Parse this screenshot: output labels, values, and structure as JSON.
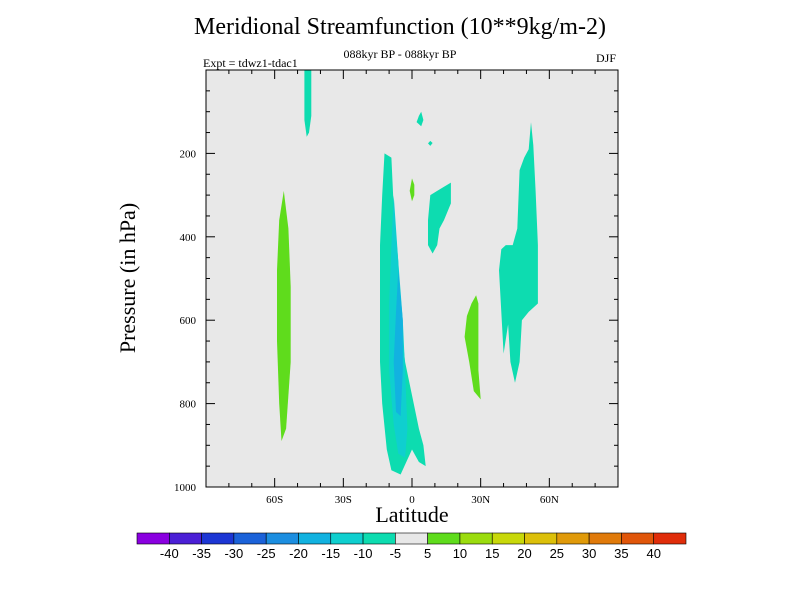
{
  "chart_data": {
    "type": "heatmap",
    "title": "Meridional Streamfunction (10**9kg/m-2)",
    "subtitle": "088kyr BP - 088kyr BP",
    "experiment": "Expt = tdwz1-tdac1",
    "season": "DJF",
    "xlabel": "Latitude",
    "ylabel": "Pressure (in hPa)",
    "xlim": [
      -90,
      90
    ],
    "ylim": [
      1000,
      0
    ],
    "x_ticks": [
      {
        "value": -60,
        "label": "60S"
      },
      {
        "value": -30,
        "label": "30S"
      },
      {
        "value": 0,
        "label": "0"
      },
      {
        "value": 30,
        "label": "30N"
      },
      {
        "value": 60,
        "label": "60N"
      }
    ],
    "y_ticks": [
      {
        "value": 200,
        "label": "200"
      },
      {
        "value": 400,
        "label": "400"
      },
      {
        "value": 600,
        "label": "600"
      },
      {
        "value": 800,
        "label": "800"
      },
      {
        "value": 1000,
        "label": "1000"
      }
    ],
    "background_color": "#e8e8e8",
    "colorbar": {
      "levels": [
        "-40",
        "-35",
        "-30",
        "-25",
        "-20",
        "-15",
        "-10",
        "-5",
        "5",
        "10",
        "15",
        "20",
        "25",
        "30",
        "35",
        "40"
      ],
      "colors": [
        "#8a00e0",
        "#4b1fd6",
        "#1c36d4",
        "#1b62d9",
        "#1c8ee0",
        "#12b2e0",
        "#0fcfcf",
        "#0ddcb0",
        "#e8e8e8",
        "#5fdc1c",
        "#9bdc0e",
        "#c8d80a",
        "#dcc00a",
        "#e09a0a",
        "#e07a0a",
        "#e0560a",
        "#e02d0a"
      ]
    },
    "regions": [
      {
        "name": "60S-positive",
        "color": "#5fdc1c",
        "points": [
          [
            -56,
            290
          ],
          [
            -54,
            380
          ],
          [
            -53,
            520
          ],
          [
            -53,
            700
          ],
          [
            -55,
            860
          ],
          [
            -57,
            890
          ],
          [
            -58,
            800
          ],
          [
            -59,
            650
          ],
          [
            -59,
            480
          ],
          [
            -58,
            360
          ]
        ]
      },
      {
        "name": "40S-upper-negative",
        "color": "#0ddcb0",
        "points": [
          [
            -47,
            0
          ],
          [
            -44,
            0
          ],
          [
            -44,
            110
          ],
          [
            -45,
            150
          ],
          [
            -46,
            160
          ],
          [
            -47,
            120
          ]
        ]
      },
      {
        "name": "eq-negative-outer",
        "color": "#0ddcb0",
        "points": [
          [
            -12,
            200
          ],
          [
            -9,
            210
          ],
          [
            -8,
            330
          ],
          [
            -6,
            460
          ],
          [
            -5,
            600
          ],
          [
            -3,
            700
          ],
          [
            0,
            780
          ],
          [
            3,
            860
          ],
          [
            5,
            900
          ],
          [
            6,
            950
          ],
          [
            3,
            940
          ],
          [
            0,
            910
          ],
          [
            -5,
            970
          ],
          [
            -9,
            960
          ],
          [
            -11,
            910
          ],
          [
            -13,
            800
          ],
          [
            -14,
            700
          ],
          [
            -14,
            560
          ],
          [
            -14,
            420
          ],
          [
            -13,
            300
          ]
        ]
      },
      {
        "name": "eq-negative-mid",
        "color": "#0fcfcf",
        "points": [
          [
            -8,
            300
          ],
          [
            -6,
            460
          ],
          [
            -4,
            600
          ],
          [
            -3,
            720
          ],
          [
            -2,
            860
          ],
          [
            -3,
            930
          ],
          [
            -6,
            920
          ],
          [
            -8,
            850
          ],
          [
            -10,
            720
          ],
          [
            -10,
            560
          ],
          [
            -9,
            420
          ]
        ]
      },
      {
        "name": "eq-negative-core",
        "color": "#12b2e0",
        "points": [
          [
            -6,
            480
          ],
          [
            -4,
            600
          ],
          [
            -4,
            720
          ],
          [
            -5,
            830
          ],
          [
            -7,
            820
          ],
          [
            -8,
            700
          ],
          [
            -7,
            580
          ]
        ]
      },
      {
        "name": "eq-upper-positive",
        "color": "#5fdc1c",
        "points": [
          [
            0,
            260
          ],
          [
            1,
            275
          ],
          [
            1,
            300
          ],
          [
            0,
            315
          ],
          [
            -1,
            290
          ]
        ]
      },
      {
        "name": "10N-upper-negative-1",
        "color": "#0ddcb0",
        "points": [
          [
            3,
            110
          ],
          [
            4,
            100
          ],
          [
            5,
            120
          ],
          [
            4,
            135
          ],
          [
            2,
            125
          ]
        ]
      },
      {
        "name": "10N-upper-negative-2",
        "color": "#0ddcb0",
        "points": [
          [
            8,
            170
          ],
          [
            9,
            175
          ],
          [
            8,
            182
          ],
          [
            7,
            176
          ]
        ]
      },
      {
        "name": "15N-negative",
        "color": "#0ddcb0",
        "points": [
          [
            8,
            300
          ],
          [
            11,
            290
          ],
          [
            14,
            280
          ],
          [
            17,
            270
          ],
          [
            17,
            320
          ],
          [
            14,
            360
          ],
          [
            12,
            380
          ],
          [
            11,
            420
          ],
          [
            9,
            440
          ],
          [
            7,
            420
          ],
          [
            7,
            360
          ]
        ]
      },
      {
        "name": "25N-positive",
        "color": "#5fdc1c",
        "points": [
          [
            28,
            540
          ],
          [
            29,
            560
          ],
          [
            29,
            720
          ],
          [
            30,
            790
          ],
          [
            27,
            770
          ],
          [
            25,
            700
          ],
          [
            23,
            640
          ],
          [
            24,
            590
          ],
          [
            26,
            560
          ]
        ]
      },
      {
        "name": "50N-negative",
        "color": "#0ddcb0",
        "points": [
          [
            52,
            125
          ],
          [
            53,
            180
          ],
          [
            54,
            290
          ],
          [
            55,
            420
          ],
          [
            55,
            560
          ],
          [
            51,
            580
          ],
          [
            48,
            600
          ],
          [
            47,
            700
          ],
          [
            45,
            750
          ],
          [
            43,
            700
          ],
          [
            42,
            610
          ],
          [
            40,
            680
          ],
          [
            39,
            580
          ],
          [
            38,
            480
          ],
          [
            39,
            430
          ],
          [
            41,
            420
          ],
          [
            44,
            420
          ],
          [
            46,
            380
          ],
          [
            47,
            240
          ],
          [
            49,
            210
          ],
          [
            51,
            190
          ]
        ]
      }
    ]
  }
}
